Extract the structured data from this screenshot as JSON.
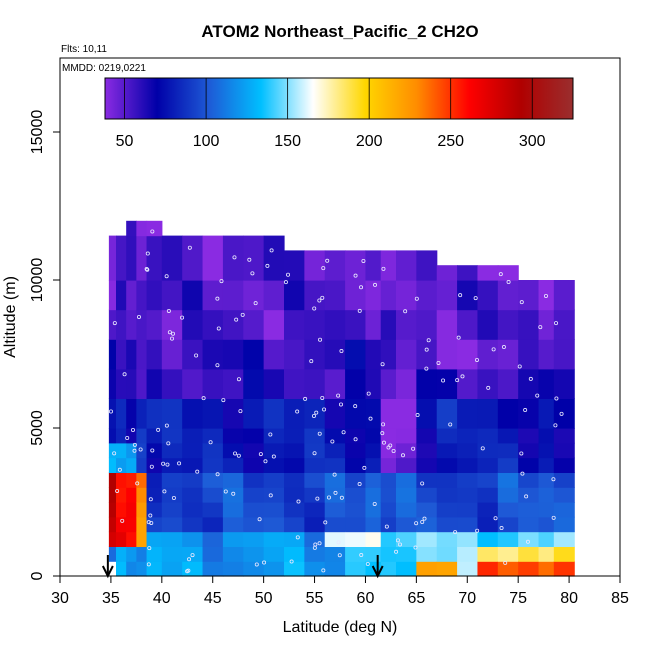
{
  "chart_data": {
    "type": "heatmap",
    "title": "ATOM2 Northeast_Pacific_2 CH2O",
    "annotations": [
      "Flts: 10,11",
      "MMDD: 0219,0221"
    ],
    "xlabel": "Latitude (deg N)",
    "ylabel": "Altitude (m)",
    "xlim": [
      30,
      85
    ],
    "ylim": [
      0,
      17500
    ],
    "x_ticks": [
      30,
      35,
      40,
      45,
      50,
      55,
      60,
      65,
      70,
      75,
      80,
      85
    ],
    "y_ticks": [
      0,
      5000,
      10000,
      15000
    ],
    "grid": false,
    "colorbar": {
      "placement": "top-inside",
      "range": [
        38,
        325
      ],
      "ticks": [
        50,
        100,
        150,
        200,
        250,
        300
      ],
      "colors": [
        "#8a2be2",
        "#0000a8",
        "#1e5ad6",
        "#00bfff",
        "#ffffff",
        "#ffd700",
        "#ff8c00",
        "#ff0000",
        "#b00000",
        "#9a2e2e"
      ]
    },
    "markers": [
      {
        "type": "down-arrow",
        "x": 34.7
      },
      {
        "type": "down-arrow",
        "x": 61.2
      }
    ],
    "x_bands": [
      34.8,
      35.5,
      36.5,
      37.5,
      38.5,
      40,
      42,
      44,
      46,
      48,
      50,
      52,
      54,
      56,
      58,
      60,
      61.5,
      63,
      65,
      67,
      69,
      71,
      73,
      75,
      77,
      78.5,
      80.5
    ],
    "alt_bands": [
      0,
      500,
      1000,
      1500,
      2000,
      2500,
      3000,
      3500,
      4000,
      4500,
      5000,
      6000,
      7000,
      8000,
      9000,
      10000,
      11500,
      12000
    ],
    "column_tops": [
      11500,
      11500,
      12000,
      12000,
      12000,
      11500,
      11500,
      11500,
      11500,
      11500,
      11500,
      11000,
      11000,
      11000,
      11000,
      11000,
      11000,
      11000,
      11000,
      10500,
      10500,
      10500,
      10500,
      10000,
      10000,
      10000
    ],
    "column_bottoms": [
      500,
      0,
      0,
      0,
      0,
      0,
      0,
      0,
      0,
      0,
      0,
      0,
      0,
      0,
      0,
      0,
      0,
      0,
      0,
      0,
      0,
      0,
      0,
      0,
      0,
      0
    ]
  }
}
